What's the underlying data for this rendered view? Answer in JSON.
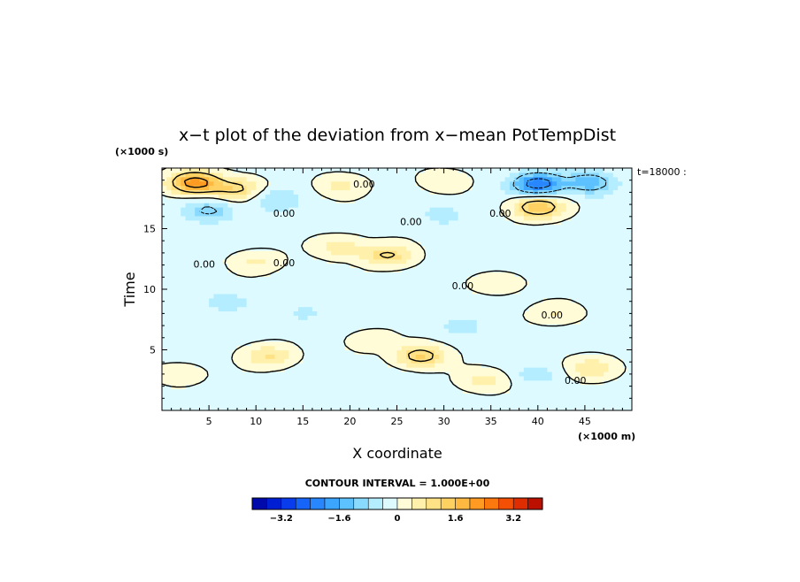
{
  "chart_data": {
    "type": "heatmap",
    "title": "x−t plot of the deviation from x−mean PotTempDist",
    "xlabel": "X coordinate",
    "ylabel": "Time",
    "x_unit": "(×1000 m)",
    "y_unit": "(×1000 s)",
    "time_label": "t=18000 :",
    "xlim": [
      0,
      50
    ],
    "ylim": [
      0,
      20
    ],
    "x_ticks": [
      5,
      10,
      15,
      20,
      25,
      30,
      35,
      40,
      45
    ],
    "y_ticks": [
      5,
      10,
      15
    ],
    "contour_interval_text": "CONTOUR INTERVAL = 1.000E+00",
    "contour_label": "0.00",
    "colorbar": {
      "min": -4,
      "max": 4,
      "step": 0.4,
      "tick_values": [
        -3.2,
        -1.6,
        0,
        1.6,
        3.2
      ],
      "tick_labels": [
        "−3.2",
        "−1.6",
        "0",
        "1.6",
        "3.2"
      ]
    },
    "features": [
      {
        "x": 3.5,
        "y": 18.8,
        "value": 2.6
      },
      {
        "x": 8.0,
        "y": 18.3,
        "value": 1.2
      },
      {
        "x": 5.0,
        "y": 16.5,
        "value": -1.0
      },
      {
        "x": 12.0,
        "y": 17.4,
        "value": -0.7
      },
      {
        "x": 40.0,
        "y": 18.7,
        "value": -2.4
      },
      {
        "x": 45.5,
        "y": 18.8,
        "value": -1.4
      },
      {
        "x": 30.0,
        "y": 19.0,
        "value": 0.5
      },
      {
        "x": 19.0,
        "y": 18.6,
        "value": 0.6
      },
      {
        "x": 40.0,
        "y": 16.8,
        "value": 1.8
      },
      {
        "x": 30.0,
        "y": 16.2,
        "value": -0.5
      },
      {
        "x": 19.0,
        "y": 13.5,
        "value": 0.8
      },
      {
        "x": 10.0,
        "y": 12.3,
        "value": 0.6
      },
      {
        "x": 24.0,
        "y": 12.8,
        "value": 1.2
      },
      {
        "x": 36.0,
        "y": 10.5,
        "value": 0.5
      },
      {
        "x": 42.0,
        "y": 8.0,
        "value": 0.6
      },
      {
        "x": 27.5,
        "y": 4.5,
        "value": 1.5
      },
      {
        "x": 11.5,
        "y": 4.5,
        "value": 1.0
      },
      {
        "x": 22.0,
        "y": 5.8,
        "value": 0.4
      },
      {
        "x": 34.5,
        "y": 2.5,
        "value": 0.7
      },
      {
        "x": 46.0,
        "y": 3.5,
        "value": 0.9
      },
      {
        "x": 2.0,
        "y": 3.0,
        "value": 0.5
      },
      {
        "x": 7.0,
        "y": 9.0,
        "value": -0.5
      },
      {
        "x": 15.0,
        "y": 8.0,
        "value": -0.4
      },
      {
        "x": 32.0,
        "y": 7.0,
        "value": -0.4
      },
      {
        "x": 40.0,
        "y": 3.0,
        "value": -0.5
      }
    ]
  }
}
